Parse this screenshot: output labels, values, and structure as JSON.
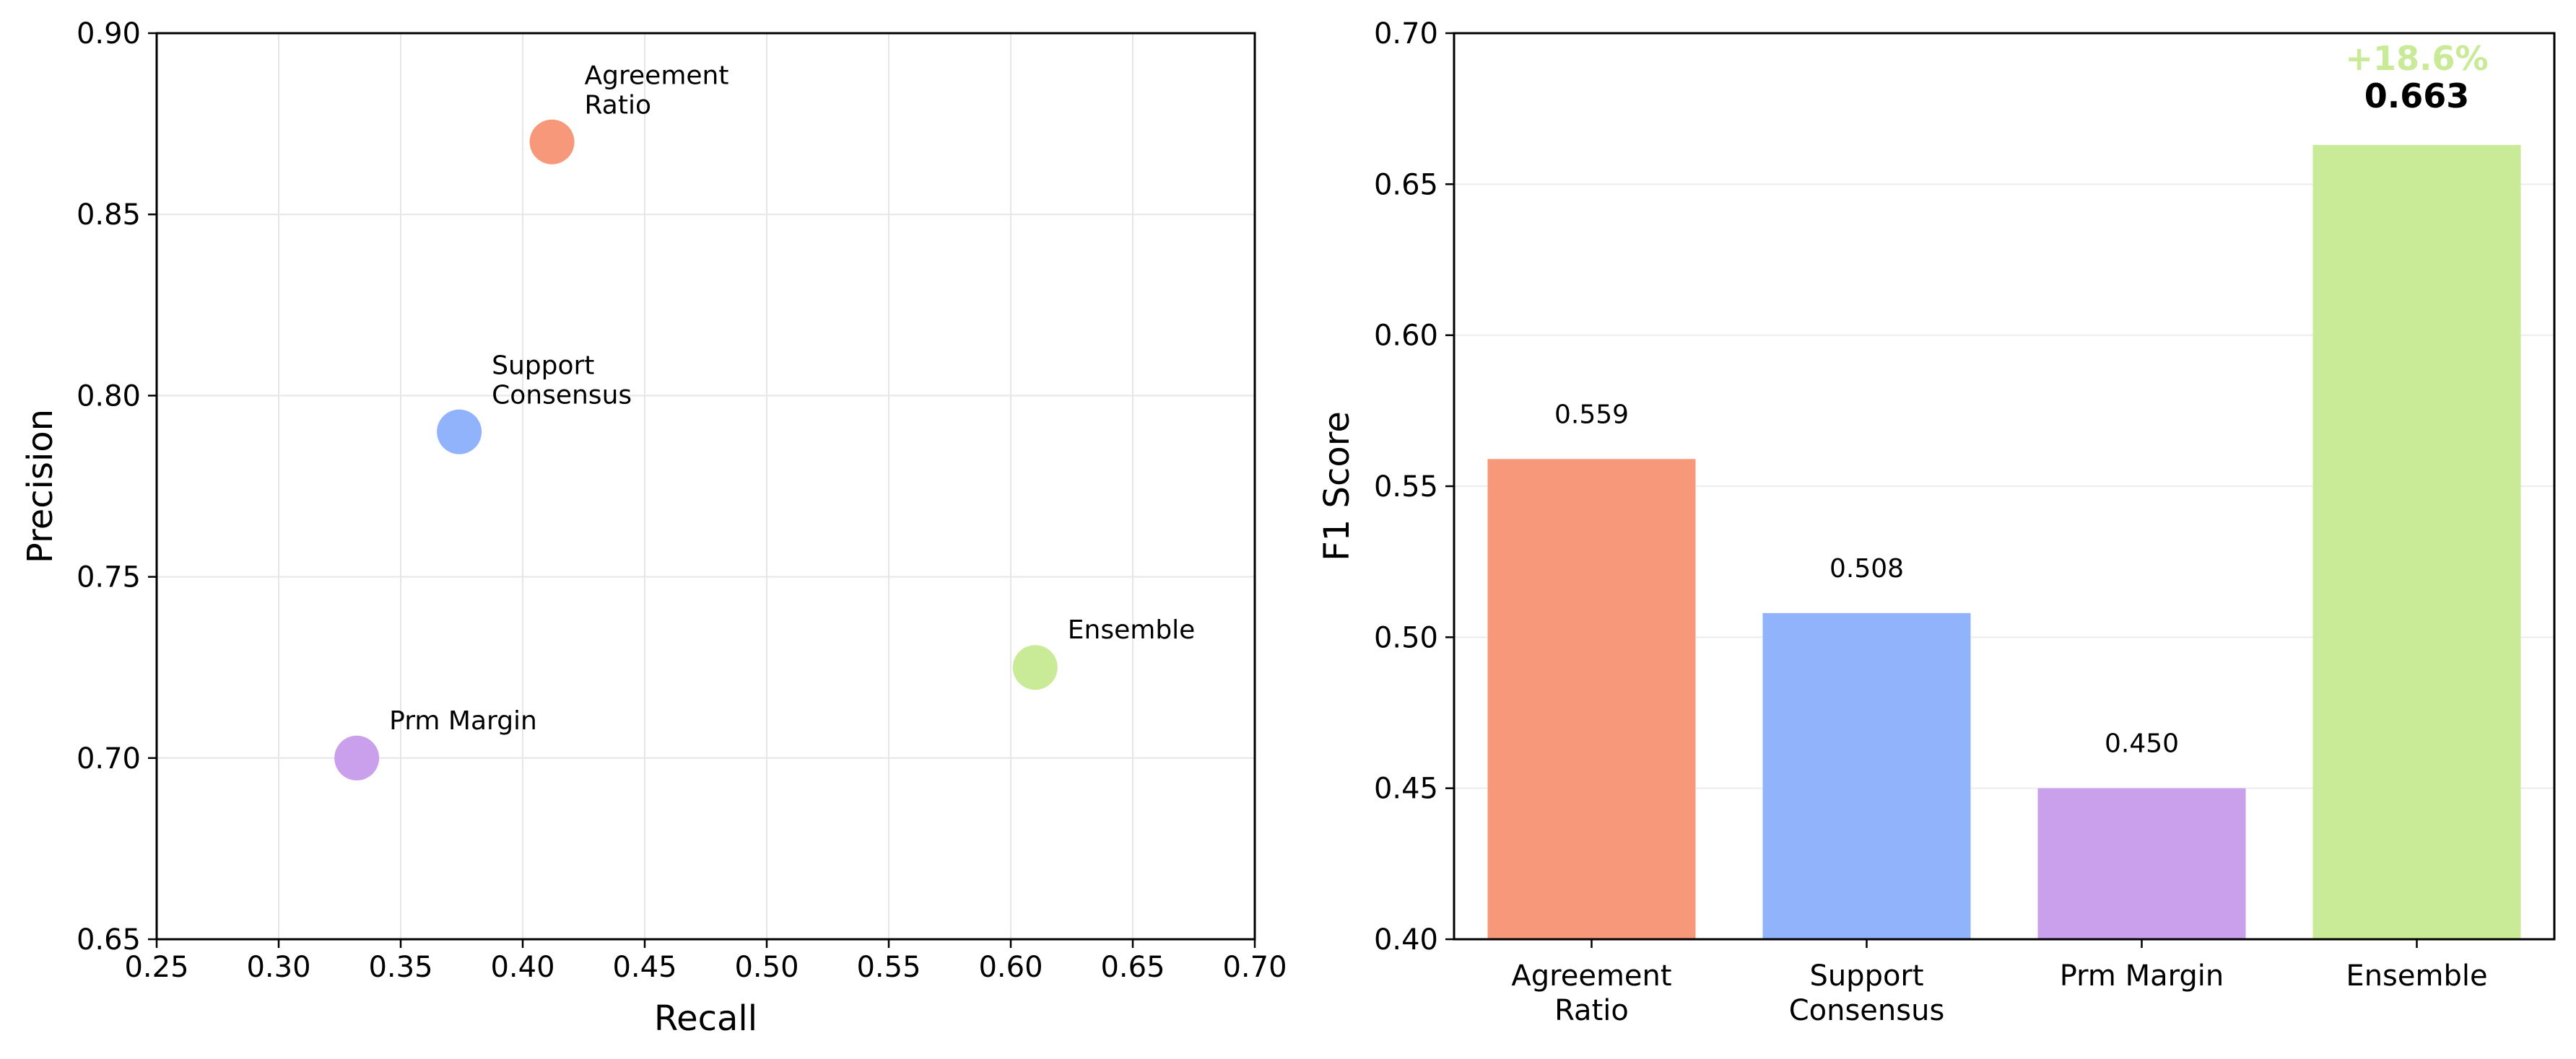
{
  "chart_data": [
    {
      "type": "scatter",
      "xlabel": "Recall",
      "ylabel": "Precision",
      "xlim": [
        0.25,
        0.7
      ],
      "ylim": [
        0.65,
        0.9
      ],
      "xticks": [
        "0.25",
        "0.30",
        "0.35",
        "0.40",
        "0.45",
        "0.50",
        "0.55",
        "0.60",
        "0.65",
        "0.70"
      ],
      "yticks": [
        "0.65",
        "0.70",
        "0.75",
        "0.80",
        "0.85",
        "0.90"
      ],
      "grid": true,
      "points": [
        {
          "label": [
            "Agreement",
            "Ratio"
          ],
          "x": 0.412,
          "y": 0.87,
          "color": "#F7987A"
        },
        {
          "label": [
            "Support",
            "Consensus"
          ],
          "x": 0.374,
          "y": 0.79,
          "color": "#91B3FC"
        },
        {
          "label": [
            "Ensemble"
          ],
          "x": 0.61,
          "y": 0.725,
          "color": "#C9EA97"
        },
        {
          "label": [
            "Prm Margin"
          ],
          "x": 0.332,
          "y": 0.7,
          "color": "#CA9FEB"
        }
      ]
    },
    {
      "type": "bar",
      "ylabel": "F1 Score",
      "ylim": [
        0.4,
        0.7
      ],
      "yticks": [
        "0.40",
        "0.45",
        "0.50",
        "0.55",
        "0.60",
        "0.65",
        "0.70"
      ],
      "grid": true,
      "bars": [
        {
          "label": [
            "Agreement",
            "Ratio"
          ],
          "value": 0.559,
          "value_label": "0.559",
          "color": "#F7987A"
        },
        {
          "label": [
            "Support",
            "Consensus"
          ],
          "value": 0.508,
          "value_label": "0.508",
          "color": "#91B3FC"
        },
        {
          "label": [
            "Prm Margin"
          ],
          "value": 0.45,
          "value_label": "0.450",
          "color": "#CA9FEB"
        },
        {
          "label": [
            "Ensemble"
          ],
          "value": 0.663,
          "value_label": "0.663",
          "color": "#C9EA97",
          "highlight": true,
          "gain_label": "+18.6%"
        }
      ]
    }
  ]
}
